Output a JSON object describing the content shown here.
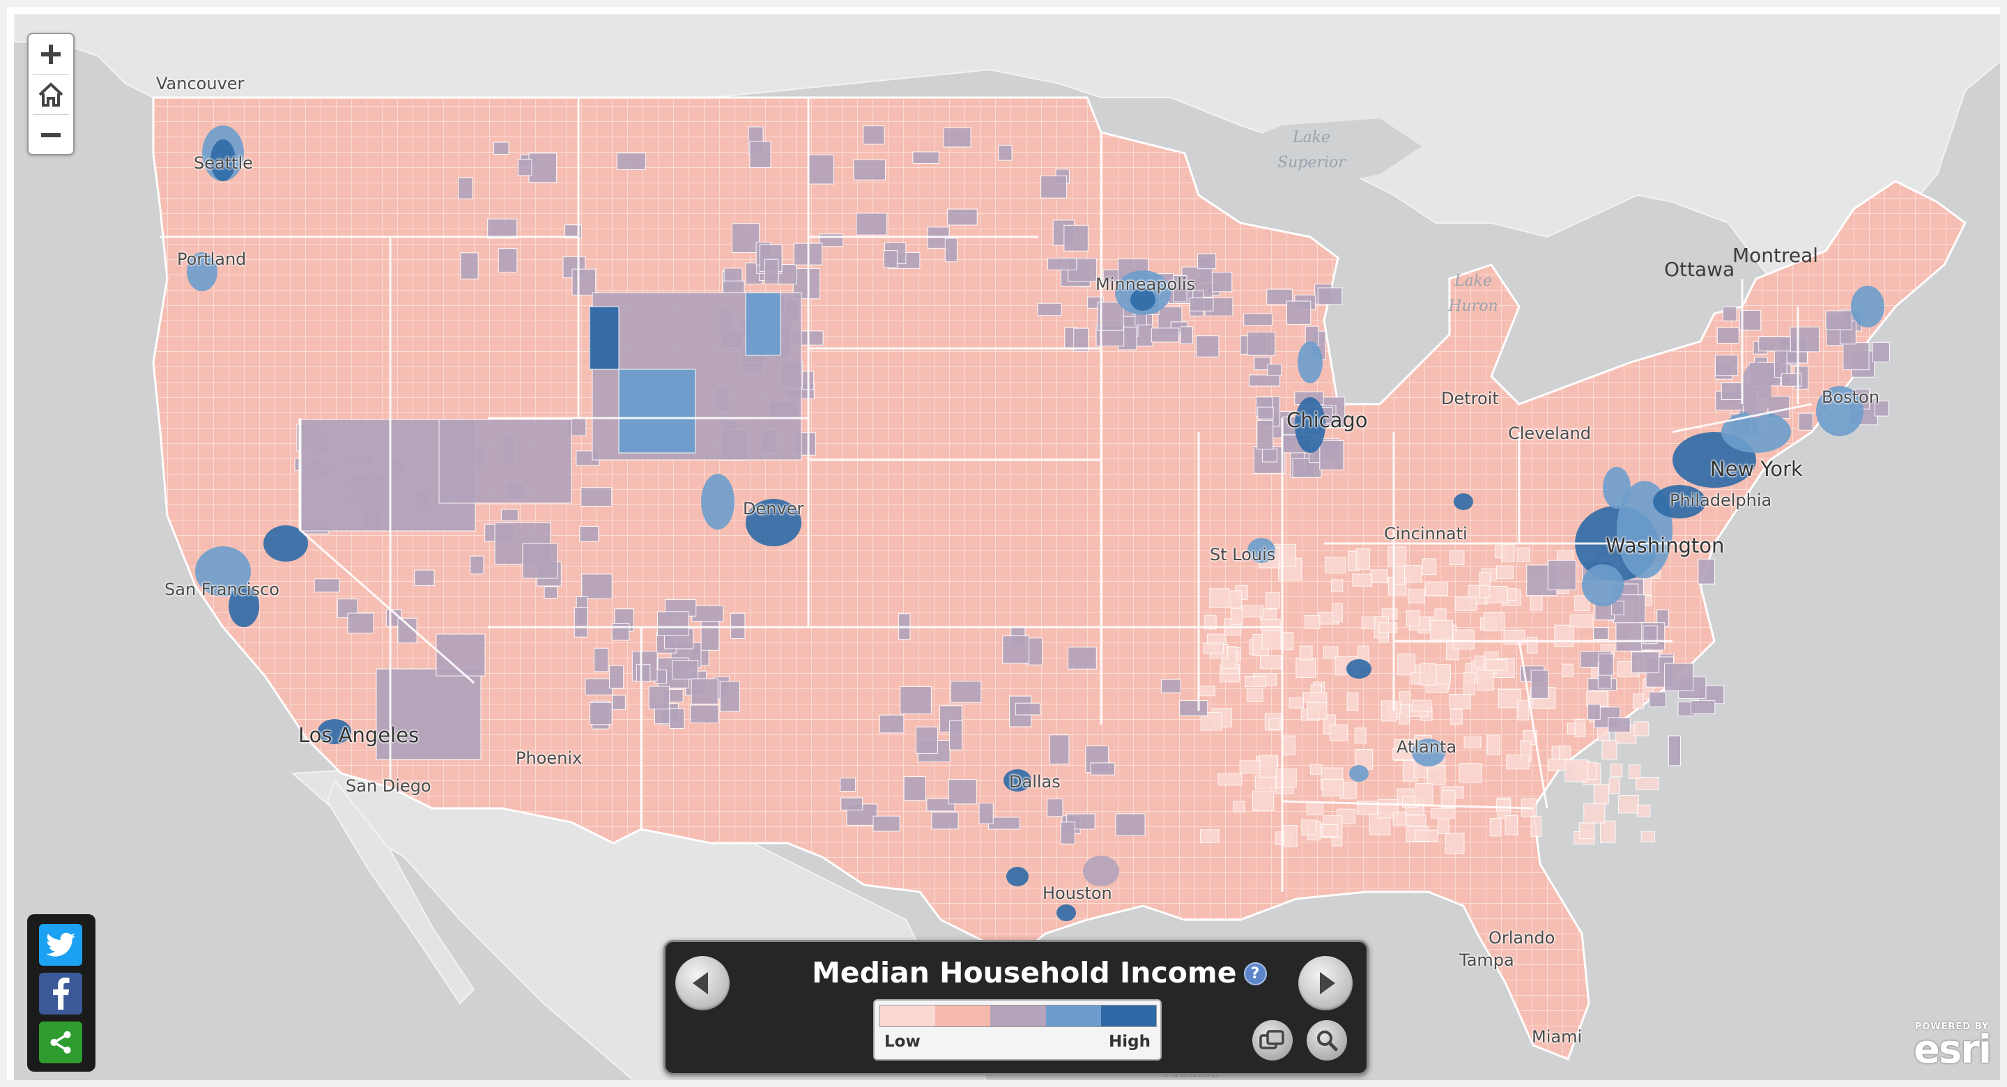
{
  "app": {
    "title": "Median Household Income"
  },
  "map": {
    "cities": [
      {
        "name": "Vancouver",
        "size": "small"
      },
      {
        "name": "Seattle",
        "size": "small"
      },
      {
        "name": "Portland",
        "size": "small"
      },
      {
        "name": "San Francisco",
        "size": "small"
      },
      {
        "name": "Los Angeles",
        "size": "big"
      },
      {
        "name": "San Diego",
        "size": "small"
      },
      {
        "name": "Phoenix",
        "size": "small"
      },
      {
        "name": "Denver",
        "size": "small"
      },
      {
        "name": "Minneapolis",
        "size": "small"
      },
      {
        "name": "Chicago",
        "size": "big"
      },
      {
        "name": "St Louis",
        "size": "small"
      },
      {
        "name": "Detroit",
        "size": "small"
      },
      {
        "name": "Cleveland",
        "size": "small"
      },
      {
        "name": "Cincinnati",
        "size": "small"
      },
      {
        "name": "Dallas",
        "size": "small"
      },
      {
        "name": "Houston",
        "size": "small"
      },
      {
        "name": "Atlanta",
        "size": "small"
      },
      {
        "name": "Orlando",
        "size": "small"
      },
      {
        "name": "Tampa",
        "size": "small"
      },
      {
        "name": "Miami",
        "size": "small"
      },
      {
        "name": "Washington",
        "size": "big"
      },
      {
        "name": "Philadelphia",
        "size": "small"
      },
      {
        "name": "New York",
        "size": "big"
      },
      {
        "name": "Boston",
        "size": "small"
      }
    ],
    "regions": [
      {
        "name": "Ottawa"
      },
      {
        "name": "Montreal"
      }
    ],
    "water": [
      {
        "name": "Lake Superior",
        "lines": [
          "Lake",
          "Superior"
        ]
      },
      {
        "name": "Lake Huron",
        "lines": [
          "Lake",
          "Huron"
        ]
      }
    ],
    "mexico_label": "Mexico"
  },
  "zoom": {
    "in_symbol": "+",
    "out_symbol": "−"
  },
  "legend": {
    "title": "Median Household Income",
    "info_symbol": "?",
    "low_label": "Low",
    "high_label": "High",
    "colors": [
      "#fbd9d3",
      "#f6b9ae",
      "#b3a3bb",
      "#6d9dcc",
      "#2f6aa6"
    ]
  },
  "social": [
    {
      "network": "twitter",
      "icon": "twitter-icon",
      "color": "#1da1f2"
    },
    {
      "network": "facebook",
      "icon": "facebook-icon",
      "color": "#3b5998"
    },
    {
      "network": "share",
      "icon": "share-icon",
      "color": "#2e9c2e"
    }
  ],
  "attribution": {
    "powered_by": "POWERED BY",
    "brand": "esri"
  },
  "colors": {
    "ocean": "#cfd1d3",
    "land": "#e7e7e7",
    "state_border": "#ffffff",
    "panel_bg": "#262626"
  }
}
